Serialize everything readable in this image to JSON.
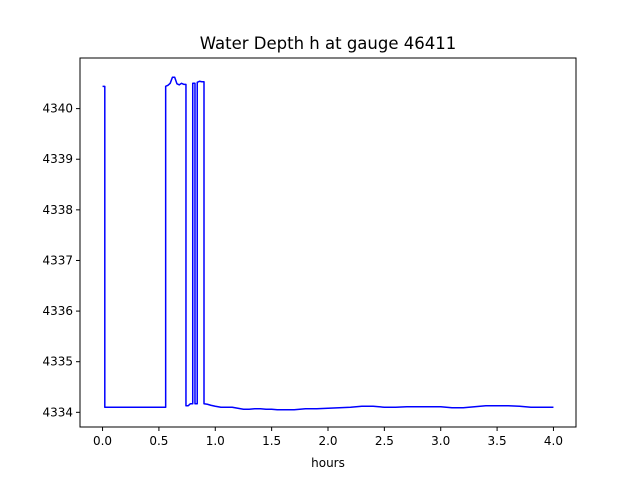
{
  "chart_data": {
    "type": "line",
    "title": "Water Depth h at gauge 46411",
    "xlabel": "hours",
    "ylabel": "",
    "xlim": [
      -0.2,
      4.2
    ],
    "ylim": [
      4333.71,
      4341.0
    ],
    "xticks": [
      0.0,
      0.5,
      1.0,
      1.5,
      2.0,
      2.5,
      3.0,
      3.5,
      4.0
    ],
    "xtick_labels": [
      "0.0",
      "0.5",
      "1.0",
      "1.5",
      "2.0",
      "2.5",
      "3.0",
      "3.5",
      "4.0"
    ],
    "yticks": [
      4334,
      4335,
      4336,
      4337,
      4338,
      4339,
      4340
    ],
    "ytick_labels": [
      "4334",
      "4335",
      "4336",
      "4337",
      "4338",
      "4339",
      "4340"
    ],
    "grid": false,
    "colors": {
      "line": "#0000ff",
      "axes": "#000000",
      "background": "#ffffff"
    },
    "series": [
      {
        "x": [
          0.0,
          0.02,
          0.02,
          0.1,
          0.2,
          0.3,
          0.4,
          0.5,
          0.56,
          0.56,
          0.58,
          0.6,
          0.62,
          0.64,
          0.66,
          0.68,
          0.7,
          0.72,
          0.74,
          0.74,
          0.76,
          0.78,
          0.8,
          0.8,
          0.82,
          0.82,
          0.84,
          0.84,
          0.86,
          0.88,
          0.9,
          0.9,
          0.93,
          0.96,
          1.0,
          1.05,
          1.1,
          1.15,
          1.2,
          1.25,
          1.3,
          1.35,
          1.4,
          1.45,
          1.5,
          1.55,
          1.6,
          1.65,
          1.7,
          1.75,
          1.8,
          1.9,
          2.0,
          2.1,
          2.2,
          2.3,
          2.35,
          2.4,
          2.5,
          2.6,
          2.7,
          2.8,
          2.9,
          3.0,
          3.1,
          3.15,
          3.2,
          3.3,
          3.4,
          3.5,
          3.6,
          3.7,
          3.8,
          3.9,
          4.0
        ],
        "values": [
          4340.44,
          4340.44,
          4334.1,
          4334.1,
          4334.1,
          4334.1,
          4334.1,
          4334.1,
          4334.1,
          4340.44,
          4340.46,
          4340.5,
          4340.62,
          4340.62,
          4340.49,
          4340.47,
          4340.5,
          4340.48,
          4340.48,
          4334.13,
          4334.13,
          4334.17,
          4334.17,
          4340.5,
          4340.5,
          4334.17,
          4334.17,
          4340.52,
          4340.54,
          4340.53,
          4340.53,
          4334.17,
          4334.16,
          4334.14,
          4334.12,
          4334.1,
          4334.1,
          4334.1,
          4334.08,
          4334.06,
          4334.06,
          4334.07,
          4334.07,
          4334.06,
          4334.06,
          4334.05,
          4334.05,
          4334.05,
          4334.05,
          4334.06,
          4334.07,
          4334.07,
          4334.08,
          4334.09,
          4334.1,
          4334.12,
          4334.12,
          4334.12,
          4334.1,
          4334.1,
          4334.11,
          4334.11,
          4334.11,
          4334.11,
          4334.09,
          4334.09,
          4334.09,
          4334.11,
          4334.13,
          4334.13,
          4334.13,
          4334.12,
          4334.1,
          4334.1,
          4334.1
        ]
      }
    ]
  }
}
